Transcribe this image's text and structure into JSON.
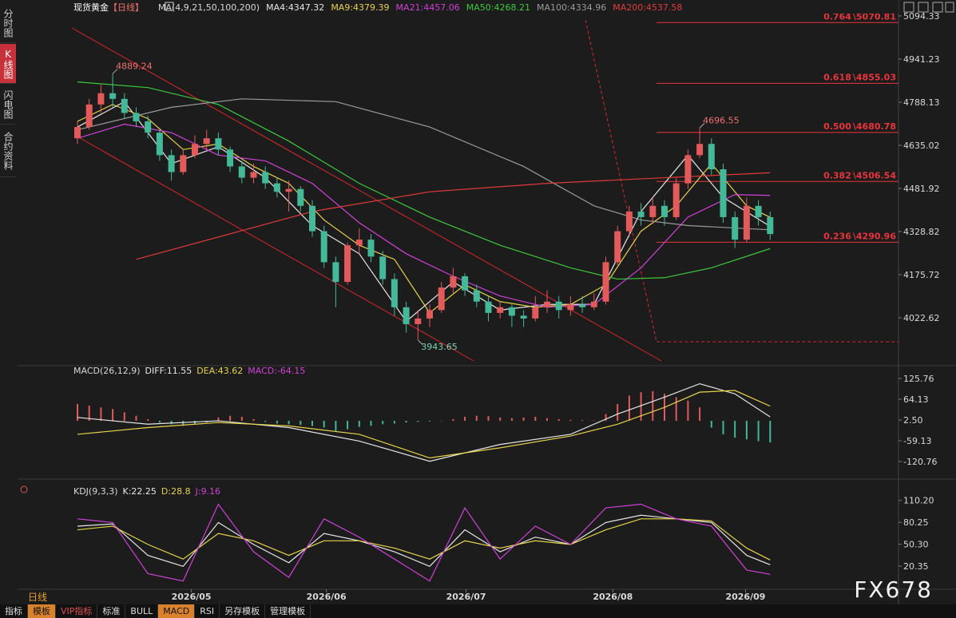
{
  "sidebar": {
    "tabs": [
      "分时图",
      "K线图",
      "闪电图",
      "合约资料"
    ],
    "active": 1
  },
  "header": {
    "title": "现货黄金",
    "period": "【日线】",
    "ma_params": "MA(4,9,21,50,100,200)"
  },
  "price_panel": {
    "ylim": [
      3861,
      5151
    ],
    "yticks": [
      5094.33,
      4941.23,
      4788.13,
      4635.02,
      4481.92,
      4328.82,
      4175.72,
      4022.62
    ],
    "up_color": "#e25a5a",
    "down_color": "#43b99a",
    "candles": [
      [
        4660,
        4720,
        4640,
        4700
      ],
      [
        4700,
        4800,
        4690,
        4780
      ],
      [
        4780,
        4850,
        4750,
        4820
      ],
      [
        4820,
        4889.24,
        4770,
        4800
      ],
      [
        4800,
        4820,
        4730,
        4750
      ],
      [
        4750,
        4770,
        4700,
        4720
      ],
      [
        4720,
        4740,
        4660,
        4680
      ],
      [
        4680,
        4690,
        4580,
        4600
      ],
      [
        4600,
        4620,
        4510,
        4540
      ],
      [
        4540,
        4620,
        4530,
        4600
      ],
      [
        4600,
        4670,
        4590,
        4640
      ],
      [
        4640,
        4690,
        4620,
        4660
      ],
      [
        4660,
        4680,
        4600,
        4620
      ],
      [
        4620,
        4630,
        4540,
        4560
      ],
      [
        4560,
        4580,
        4500,
        4520
      ],
      [
        4520,
        4570,
        4500,
        4540
      ],
      [
        4540,
        4560,
        4480,
        4500
      ],
      [
        4500,
        4520,
        4450,
        4470
      ],
      [
        4470,
        4510,
        4400,
        4480
      ],
      [
        4480,
        4490,
        4400,
        4420
      ],
      [
        4420,
        4440,
        4310,
        4330
      ],
      [
        4330,
        4350,
        4200,
        4220
      ],
      [
        4220,
        4240,
        4060,
        4150
      ],
      [
        4150,
        4290,
        4140,
        4280
      ],
      [
        4280,
        4340,
        4250,
        4300
      ],
      [
        4300,
        4320,
        4220,
        4240
      ],
      [
        4240,
        4260,
        4140,
        4160
      ],
      [
        4160,
        4180,
        4030,
        4060
      ],
      [
        4060,
        4080,
        3970,
        4000
      ],
      [
        4000,
        4050,
        3943.65,
        4020
      ],
      [
        4020,
        4070,
        3990,
        4050
      ],
      [
        4050,
        4150,
        4040,
        4130
      ],
      [
        4130,
        4200,
        4110,
        4170
      ],
      [
        4170,
        4180,
        4100,
        4120
      ],
      [
        4120,
        4140,
        4060,
        4080
      ],
      [
        4080,
        4100,
        4010,
        4040
      ],
      [
        4040,
        4080,
        4020,
        4060
      ],
      [
        4060,
        4070,
        3990,
        4030
      ],
      [
        4030,
        4050,
        3990,
        4020
      ],
      [
        4020,
        4100,
        4010,
        4060
      ],
      [
        4060,
        4120,
        4040,
        4080
      ],
      [
        4080,
        4100,
        4020,
        4050
      ],
      [
        4050,
        4100,
        4030,
        4070
      ],
      [
        4070,
        4100,
        4040,
        4060
      ],
      [
        4060,
        4110,
        4050,
        4080
      ],
      [
        4080,
        4240,
        4070,
        4220
      ],
      [
        4220,
        4350,
        4210,
        4330
      ],
      [
        4330,
        4420,
        4310,
        4400
      ],
      [
        4400,
        4430,
        4350,
        4380
      ],
      [
        4380,
        4450,
        4360,
        4420
      ],
      [
        4420,
        4440,
        4350,
        4380
      ],
      [
        4380,
        4520,
        4370,
        4500
      ],
      [
        4500,
        4620,
        4480,
        4600
      ],
      [
        4600,
        4696.55,
        4590,
        4640
      ],
      [
        4640,
        4660,
        4530,
        4550
      ],
      [
        4550,
        4570,
        4360,
        4380
      ],
      [
        4380,
        4400,
        4270,
        4300
      ],
      [
        4300,
        4450,
        4290,
        4420
      ],
      [
        4420,
        4440,
        4350,
        4380
      ],
      [
        4380,
        4400,
        4300,
        4320
      ]
    ],
    "annotations": [
      [
        3,
        1
      ],
      [
        53,
        1
      ],
      [
        29,
        2
      ]
    ],
    "ma_lines": [
      {
        "name": "MA4:",
        "color": "#e6e6e6",
        "x": [
          0,
          4,
          8,
          12,
          16,
          20,
          24,
          28,
          32,
          36,
          40,
          44,
          48,
          52,
          55,
          59
        ],
        "values": [
          4700,
          4790,
          4570,
          4630,
          4520,
          4350,
          4250,
          4010,
          4150,
          4050,
          4070,
          4070,
          4400,
          4600,
          4450,
          4347.32
        ]
      },
      {
        "name": "MA9:",
        "color": "#e6d24a",
        "x": [
          0,
          3,
          6,
          9,
          12,
          15,
          18,
          21,
          24,
          27,
          30,
          33,
          36,
          39,
          42,
          45,
          48,
          51,
          54,
          57,
          59
        ],
        "values": [
          4720,
          4780,
          4730,
          4620,
          4640,
          4560,
          4500,
          4370,
          4280,
          4230,
          4040,
          4140,
          4080,
          4060,
          4070,
          4140,
          4330,
          4420,
          4570,
          4420,
          4379.39
        ]
      },
      {
        "name": "MA21:",
        "color": "#d040d8",
        "x": [
          0,
          4,
          8,
          12,
          16,
          20,
          24,
          28,
          32,
          36,
          40,
          44,
          48,
          52,
          56,
          59
        ],
        "values": [
          4660,
          4710,
          4680,
          4600,
          4580,
          4500,
          4360,
          4250,
          4170,
          4100,
          4060,
          4070,
          4200,
          4380,
          4460,
          4457.06
        ]
      },
      {
        "name": "MA50:",
        "color": "#3cc83c",
        "x": [
          0,
          6,
          12,
          18,
          24,
          30,
          36,
          42,
          46,
          50,
          54,
          59
        ],
        "values": [
          4860,
          4840,
          4780,
          4650,
          4500,
          4380,
          4280,
          4200,
          4160,
          4165,
          4200,
          4268.21
        ]
      },
      {
        "name": "MA100:",
        "color": "#9a9a9a",
        "x": [
          0,
          8,
          14,
          22,
          30,
          38,
          44,
          48,
          52,
          59
        ],
        "values": [
          4690,
          4770,
          4800,
          4790,
          4700,
          4560,
          4420,
          4370,
          4350,
          4334.96
        ]
      },
      {
        "name": "MA200:",
        "color": "#e03a3a",
        "x": [
          5,
          20,
          30,
          40,
          50,
          59
        ],
        "values": [
          4230,
          4400,
          4470,
          4500,
          4520,
          4537.58
        ]
      }
    ],
    "fib": {
      "separator": "\\",
      "color": "#e8343a",
      "levels": [
        {
          "ratio": 0.764,
          "value": 5070.81
        },
        {
          "ratio": 0.618,
          "value": 4855.03
        },
        {
          "ratio": "0.500",
          "value": 4680.78
        },
        {
          "ratio": 0.382,
          "value": 4506.54
        },
        {
          "ratio": 0.236,
          "value": 4290.96
        }
      ]
    }
  },
  "macd_panel": {
    "title": "MACD(26,12,9)",
    "ylim": [
      -149,
      154
    ],
    "yticks": [
      125.76,
      64.13,
      {
        "value": 2.5,
        "label": "2.50"
      },
      -59.13,
      -120.76
    ],
    "hist": [
      50,
      45,
      40,
      35,
      25,
      15,
      5,
      -5,
      -10,
      -15,
      -10,
      -5,
      10,
      15,
      12,
      5,
      -3,
      -8,
      -10,
      -12,
      -15,
      -20,
      -30,
      -25,
      -18,
      -15,
      -10,
      -8,
      -5,
      -3,
      -2,
      -1,
      5,
      12,
      15,
      14,
      10,
      8,
      10,
      12,
      8,
      5,
      3,
      2,
      1,
      20,
      50,
      75,
      85,
      88,
      80,
      70,
      60,
      40,
      -20,
      -40,
      -50,
      -55,
      -60,
      -64.15
    ],
    "hist_name": "MACD:",
    "lines": [
      {
        "name": "DIFF:",
        "color": "#e6e6e6",
        "x": [
          0,
          6,
          12,
          18,
          24,
          30,
          36,
          42,
          46,
          50,
          53,
          56,
          59
        ],
        "values": [
          10,
          -10,
          0,
          -20,
          -60,
          -120,
          -70,
          -40,
          20,
          70,
          110,
          80,
          11.55
        ]
      },
      {
        "name": "DEA:",
        "color": "#e6d24a",
        "x": [
          0,
          6,
          12,
          18,
          24,
          30,
          36,
          42,
          46,
          50,
          53,
          56,
          59
        ],
        "values": [
          -40,
          -20,
          -5,
          -15,
          -40,
          -110,
          -80,
          -45,
          -10,
          40,
          85,
          90,
          43.62
        ]
      }
    ]
  },
  "kdj_panel": {
    "title": "KDJ(9,3,3)",
    "ylim": [
      -8,
      123
    ],
    "yticks": [
      {
        "value": 110.2,
        "label": "110.20"
      },
      80.25,
      {
        "value": 50.3,
        "label": "50.30"
      },
      20.35
    ],
    "lines": [
      {
        "name": "K:",
        "color": "#e6e6e6",
        "x": [
          0,
          3,
          6,
          9,
          12,
          15,
          18,
          21,
          24,
          27,
          30,
          33,
          36,
          39,
          42,
          45,
          48,
          51,
          54,
          57,
          59
        ],
        "values": [
          75,
          78,
          35,
          20,
          80,
          50,
          25,
          65,
          55,
          40,
          20,
          70,
          40,
          60,
          50,
          80,
          90,
          85,
          80,
          35,
          22.25
        ]
      },
      {
        "name": "D:",
        "color": "#e6d24a",
        "x": [
          0,
          3,
          6,
          9,
          12,
          15,
          18,
          21,
          24,
          27,
          30,
          33,
          36,
          39,
          42,
          45,
          48,
          51,
          54,
          57,
          59
        ],
        "values": [
          70,
          75,
          50,
          30,
          65,
          55,
          35,
          55,
          55,
          45,
          30,
          55,
          45,
          55,
          50,
          70,
          85,
          85,
          82,
          45,
          28.8
        ]
      },
      {
        "name": "J:",
        "color": "#d040d8",
        "x": [
          0,
          3,
          6,
          9,
          12,
          15,
          18,
          21,
          24,
          27,
          30,
          33,
          36,
          39,
          42,
          45,
          48,
          51,
          54,
          57,
          59
        ],
        "values": [
          85,
          80,
          10,
          0,
          105,
          40,
          5,
          85,
          60,
          30,
          0,
          100,
          30,
          75,
          50,
          100,
          105,
          85,
          75,
          15,
          9.16
        ]
      }
    ]
  },
  "x_axis": {
    "ticks": [
      {
        "value": 9.7,
        "label": "2026/05"
      },
      {
        "value": 21.2,
        "label": "2026/06"
      },
      {
        "value": 33.1,
        "label": "2026/07"
      },
      {
        "value": 45.6,
        "label": "2026/08"
      },
      {
        "value": 56.9,
        "label": "2026/09"
      }
    ]
  },
  "period_label": "日线",
  "toolbar": {
    "tabs": [
      "指标",
      "模板",
      "VIP指标",
      "标准",
      "BULL",
      "MACD",
      "RSI",
      "另存模板",
      "管理模板"
    ],
    "highlighted": [
      1,
      5
    ]
  },
  "watermark": "FX678"
}
